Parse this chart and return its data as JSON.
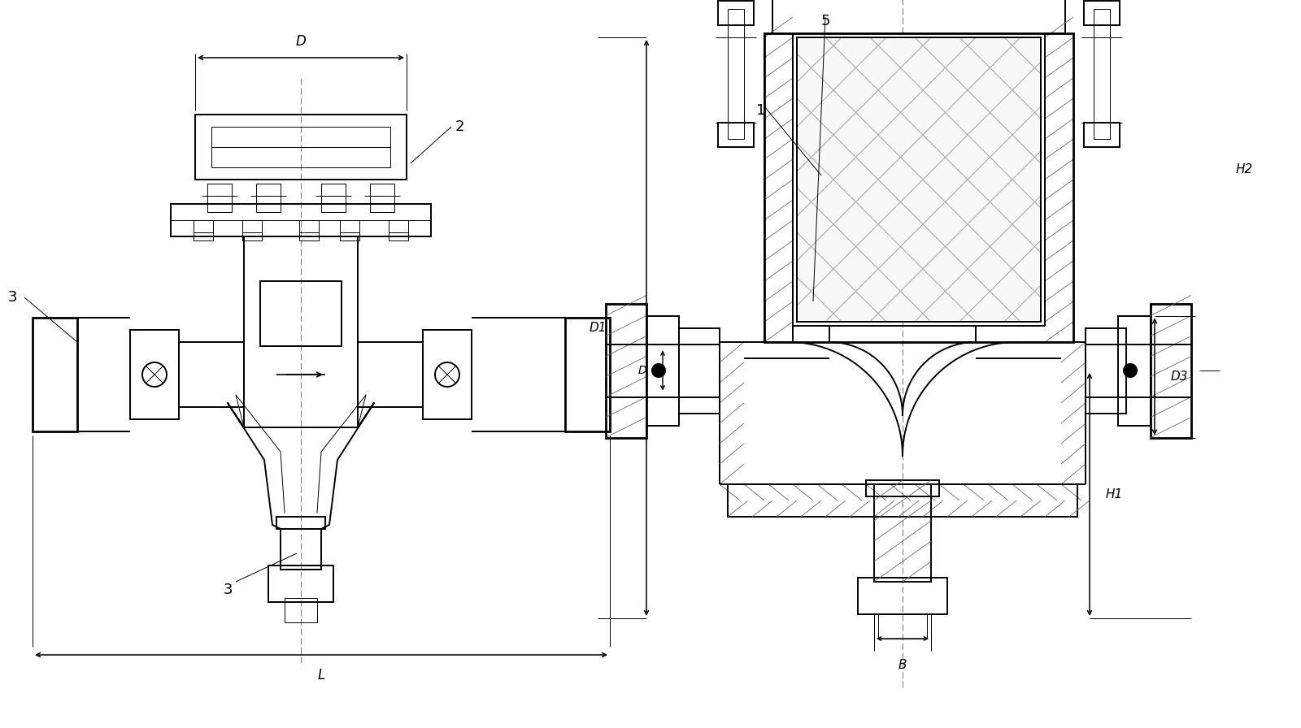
{
  "bg": "#ffffff",
  "lc": "#000000",
  "lw": 1.4,
  "tlw": 0.7,
  "thk": 2.0,
  "fw": 16.0,
  "fh": 8.96,
  "labels": {
    "D": "D",
    "L": "L",
    "1": "1",
    "2": "2",
    "3": "3",
    "5": "5",
    "D1": "D1",
    "Dm": "D",
    "D3": "D3",
    "H1": "H1",
    "H2": "H2",
    "B": "B"
  }
}
